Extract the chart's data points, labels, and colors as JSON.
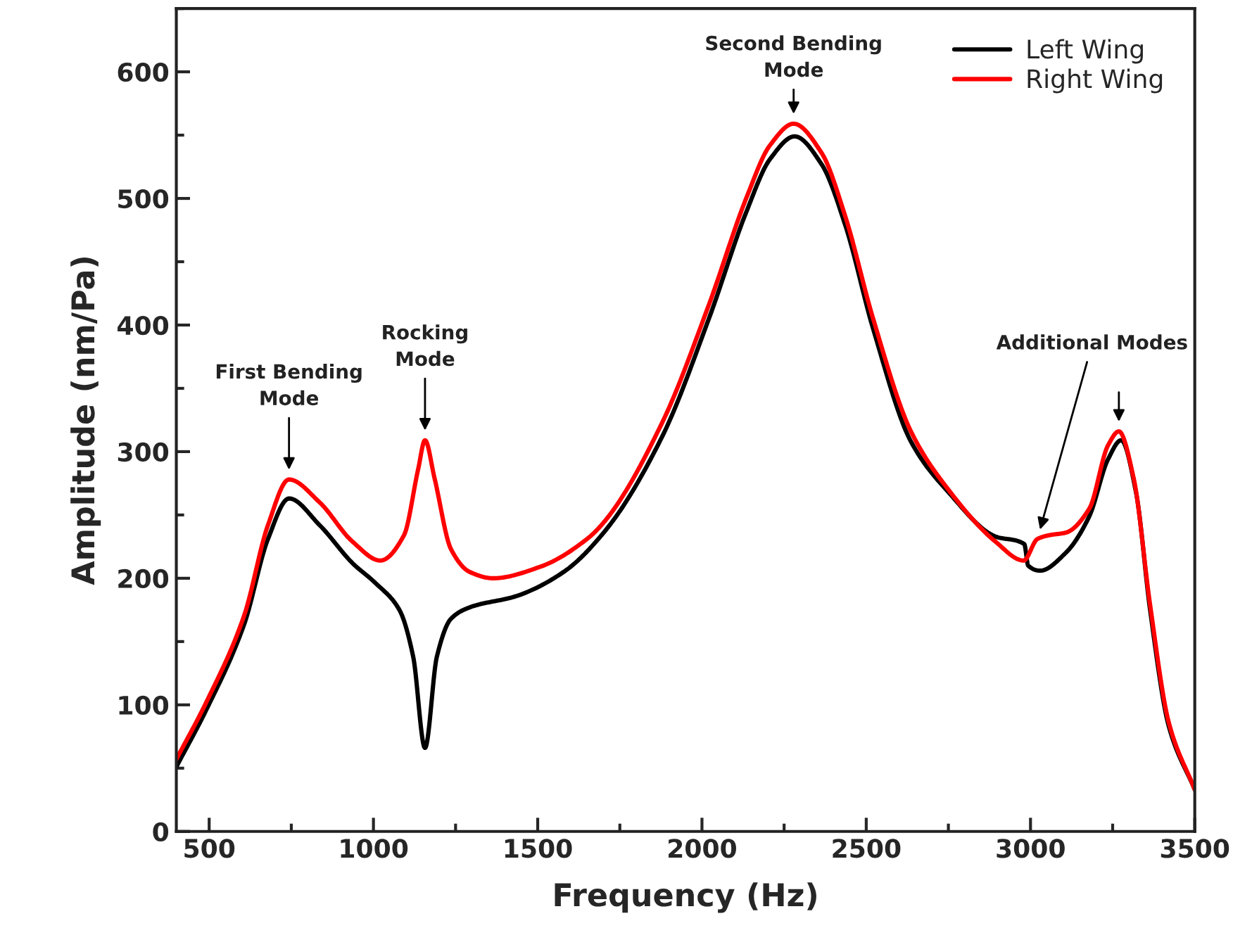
{
  "chart_data": {
    "type": "line",
    "xlabel": "Frequency (Hz)",
    "ylabel": "Amplitude (nm/Pa)",
    "xlim": [
      400,
      3500
    ],
    "ylim": [
      0,
      650
    ],
    "xticks": [
      500,
      1000,
      1500,
      2000,
      2500,
      3000,
      3500
    ],
    "yticks": [
      0,
      100,
      200,
      300,
      400,
      500,
      600
    ],
    "grid": false,
    "legend": "top right",
    "marker": "none",
    "line_style": "solid",
    "series": [
      {
        "name": "Left Wing",
        "color": "#000000",
        "x": [
          400,
          493,
          607,
          679,
          743,
          836,
          936,
          1007,
          1079,
          1121,
          1157,
          1193,
          1236,
          1293,
          1436,
          1579,
          1707,
          1879,
          2021,
          2136,
          2207,
          2282,
          2364,
          2436,
          2521,
          2636,
          2750,
          2893,
          2981,
          2993,
          3029,
          3107,
          3179,
          3236,
          3276,
          3321,
          3364,
          3421,
          3500
        ],
        "values": [
          51,
          97,
          164,
          231,
          263,
          242,
          212,
          196,
          175,
          138,
          66,
          138,
          168,
          177,
          186,
          205,
          238,
          312,
          405,
          490,
          531,
          549,
          527,
          479,
          397,
          308,
          268,
          233,
          227,
          210,
          206,
          220,
          249,
          294,
          309,
          268,
          175,
          83,
          33
        ]
      },
      {
        "name": "Right Wing",
        "color": "#ff0000",
        "x": [
          400,
          493,
          607,
          679,
          743,
          836,
          936,
          1021,
          1093,
          1136,
          1157,
          1186,
          1236,
          1293,
          1364,
          1507,
          1650,
          1707,
          1879,
          2021,
          2136,
          2207,
          2279,
          2364,
          2436,
          2521,
          2636,
          2750,
          2893,
          2979,
          3021,
          3057,
          3107,
          3179,
          3236,
          3269,
          3314,
          3364,
          3421,
          3500
        ],
        "values": [
          57,
          103,
          171,
          242,
          278,
          260,
          229,
          214,
          234,
          286,
          309,
          279,
          223,
          205,
          200,
          209,
          231,
          246,
          323,
          416,
          501,
          542,
          559,
          536,
          486,
          405,
          316,
          270,
          229,
          214,
          231,
          234,
          236,
          255,
          305,
          316,
          279,
          179,
          86,
          33
        ]
      }
    ],
    "annotations": [
      {
        "text": "First Bending\nMode",
        "x": 743,
        "y": 278
      },
      {
        "text": "Rocking\nMode",
        "x": 1157,
        "y": 309
      },
      {
        "text": "Second Bending\nMode",
        "x": 2279,
        "y": 559
      },
      {
        "text": "Additional Modes",
        "x": 3021,
        "y": 231
      }
    ]
  }
}
